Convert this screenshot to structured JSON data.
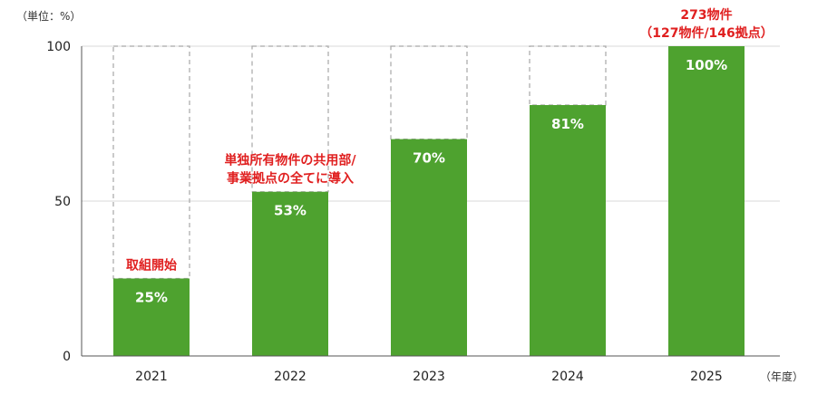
{
  "chart_data": {
    "type": "bar",
    "categories": [
      "2021",
      "2022",
      "2023",
      "2024",
      "2025"
    ],
    "values": [
      25,
      53,
      70,
      81,
      100
    ],
    "value_labels": [
      "25%",
      "53%",
      "70%",
      "81%",
      "100%"
    ],
    "target": 100,
    "ylim": [
      0,
      100
    ],
    "yticks": [
      0,
      50,
      100
    ],
    "ylabel": "（単位：%）",
    "xlabel": "（年度）",
    "bar_color": "#4ea22f",
    "annotation_color": "#e02020",
    "target_style": "dashed-outline",
    "annotations": [
      {
        "category": "2021",
        "lines": [
          "取組開始"
        ]
      },
      {
        "category": "2022",
        "lines": [
          "単独所有物件の共用部/",
          "事業拠点の全てに導入"
        ]
      },
      {
        "category": "2025",
        "lines": [
          "273物件",
          "（127物件/146拠点）"
        ]
      }
    ]
  }
}
